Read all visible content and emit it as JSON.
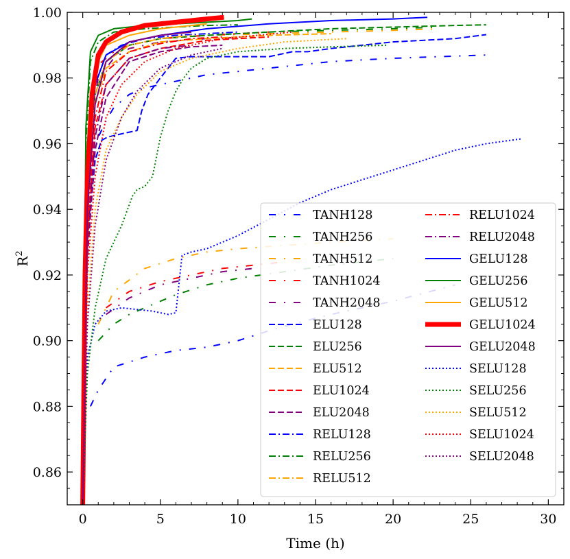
{
  "chart_data": {
    "type": "line",
    "title": "",
    "xlabel": "Time (h)",
    "ylabel": "R²",
    "ylabel_base": "R",
    "ylabel_sup": "2",
    "xlim": [
      -1,
      31
    ],
    "ylim": [
      0.85,
      1.0
    ],
    "xticks": [
      0,
      5,
      10,
      15,
      20,
      25,
      30
    ],
    "yticks": [
      0.86,
      0.88,
      0.9,
      0.92,
      0.94,
      0.96,
      0.98,
      1.0
    ],
    "xtick_labels": [
      "0",
      "5",
      "10",
      "15",
      "20",
      "25",
      "30"
    ],
    "ytick_labels": [
      "0.86",
      "0.88",
      "0.90",
      "0.92",
      "0.94",
      "0.96",
      "0.98",
      "1.00"
    ],
    "legend_position": "lower-right",
    "series": [
      {
        "name": "TANH128",
        "color": "#0000ff",
        "style": "loose-dashdot",
        "width": 2,
        "x": [
          0,
          0.2,
          0.5,
          1,
          1.5,
          2,
          3,
          4,
          6,
          8,
          12,
          16,
          20,
          23,
          26
        ],
        "y": [
          0.85,
          0.93,
          0.952,
          0.962,
          0.967,
          0.971,
          0.975,
          0.977,
          0.979,
          0.981,
          0.983,
          0.985,
          0.986,
          0.9865,
          0.987
        ]
      },
      {
        "name": "TANH256",
        "color": "#008000",
        "style": "loose-dashdot",
        "width": 2,
        "x": [
          0,
          0.2,
          0.5,
          1,
          2,
          3,
          5,
          8,
          12,
          16,
          20,
          23
        ],
        "y": [
          0.85,
          0.94,
          0.975,
          0.984,
          0.988,
          0.99,
          0.992,
          0.993,
          0.994,
          0.9945,
          0.995,
          0.9955
        ]
      },
      {
        "name": "TANH512",
        "color": "#ffa500",
        "style": "loose-dashdot",
        "width": 2,
        "x": [
          0,
          0.2,
          0.5,
          1,
          2,
          3,
          5,
          8,
          12,
          16,
          20,
          23
        ],
        "y": [
          0.85,
          0.945,
          0.975,
          0.984,
          0.988,
          0.99,
          0.992,
          0.993,
          0.9935,
          0.994,
          0.9945,
          0.995
        ]
      },
      {
        "name": "TANH1024",
        "color": "#ff0000",
        "style": "loose-dashdot",
        "width": 2,
        "x": [
          0,
          0.2,
          0.5,
          1,
          2,
          3,
          5,
          8,
          10,
          12
        ],
        "y": [
          0.85,
          0.94,
          0.975,
          0.984,
          0.988,
          0.99,
          0.992,
          0.993,
          0.9935,
          0.994
        ]
      },
      {
        "name": "TANH2048",
        "color": "#800080",
        "style": "loose-dashdot",
        "width": 2,
        "x": [
          0,
          0.2,
          0.5,
          1,
          2,
          3,
          5,
          8,
          11
        ],
        "y": [
          0.85,
          0.93,
          0.968,
          0.98,
          0.986,
          0.989,
          0.991,
          0.992,
          0.9925
        ]
      },
      {
        "name": "ELU128",
        "color": "#0000ff",
        "style": "dashed",
        "width": 2,
        "x": [
          0,
          0.3,
          0.8,
          1.2,
          1.6,
          2.5,
          3.5,
          3.8,
          4.2,
          5,
          6,
          7,
          12,
          13.5,
          14.5,
          16,
          20,
          24,
          26
        ],
        "y": [
          0.85,
          0.93,
          0.955,
          0.961,
          0.962,
          0.963,
          0.964,
          0.97,
          0.975,
          0.98,
          0.986,
          0.9865,
          0.9865,
          0.988,
          0.988,
          0.989,
          0.991,
          0.992,
          0.9932
        ]
      },
      {
        "name": "ELU256",
        "color": "#008000",
        "style": "dashed",
        "width": 2,
        "x": [
          0,
          0.3,
          0.8,
          1.5,
          3,
          5,
          8,
          12,
          16,
          20,
          24,
          26
        ],
        "y": [
          0.85,
          0.94,
          0.975,
          0.985,
          0.99,
          0.992,
          0.993,
          0.994,
          0.995,
          0.9955,
          0.996,
          0.9962
        ]
      },
      {
        "name": "ELU512",
        "color": "#ffa500",
        "style": "dashed",
        "width": 2,
        "x": [
          0,
          0.3,
          0.8,
          1.5,
          3,
          5,
          8,
          12,
          16
        ],
        "y": [
          0.85,
          0.94,
          0.972,
          0.983,
          0.988,
          0.991,
          0.992,
          0.993,
          0.9935
        ]
      },
      {
        "name": "ELU1024",
        "color": "#ff0000",
        "style": "dashed",
        "width": 2,
        "x": [
          0,
          0.3,
          0.8,
          1.5,
          3,
          5,
          8,
          10,
          12
        ],
        "y": [
          0.85,
          0.93,
          0.965,
          0.978,
          0.986,
          0.989,
          0.9915,
          0.992,
          0.9925
        ]
      },
      {
        "name": "ELU2048",
        "color": "#800080",
        "style": "dashed",
        "width": 2,
        "x": [
          0,
          0.3,
          0.8,
          1.5,
          3,
          5,
          7,
          9
        ],
        "y": [
          0.85,
          0.925,
          0.958,
          0.974,
          0.985,
          0.988,
          0.9895,
          0.99
        ]
      },
      {
        "name": "RELU128",
        "color": "#0000ff",
        "style": "dashdot",
        "width": 2,
        "x": [
          0,
          0.3,
          0.8,
          1.5,
          2.5,
          4,
          6,
          8,
          10
        ],
        "y": [
          0.85,
          0.95,
          0.978,
          0.987,
          0.99,
          0.992,
          0.993,
          0.9935,
          0.994
        ]
      },
      {
        "name": "RELU256",
        "color": "#008000",
        "style": "dashdot",
        "width": 2,
        "x": [
          0,
          0.2,
          0.5,
          1,
          2,
          4,
          6,
          8,
          10
        ],
        "y": [
          0.85,
          0.96,
          0.985,
          0.991,
          0.994,
          0.995,
          0.9955,
          0.996,
          0.9962
        ]
      },
      {
        "name": "RELU512",
        "color": "#ffa500",
        "style": "dashdot",
        "width": 2,
        "x": [
          0,
          0.3,
          0.8,
          1.5,
          3,
          5,
          7
        ],
        "y": [
          0.85,
          0.94,
          0.975,
          0.985,
          0.99,
          0.992,
          0.993
        ]
      },
      {
        "name": "RELU1024",
        "color": "#ff0000",
        "style": "dashdot",
        "width": 2,
        "x": [
          0,
          0.3,
          0.8,
          1.5,
          3,
          5,
          7,
          9
        ],
        "y": [
          0.85,
          0.935,
          0.968,
          0.982,
          0.988,
          0.9905,
          0.992,
          0.9925
        ]
      },
      {
        "name": "RELU2048",
        "color": "#800080",
        "style": "dashdot",
        "width": 2,
        "x": [
          0,
          0.3,
          0.8,
          1.5,
          3,
          5,
          7
        ],
        "y": [
          0.85,
          0.93,
          0.962,
          0.978,
          0.986,
          0.989,
          0.99
        ]
      },
      {
        "name": "GELU128",
        "color": "#0000ff",
        "style": "solid",
        "width": 2,
        "x": [
          0,
          0.3,
          0.8,
          1.5,
          3,
          5,
          8,
          12,
          16,
          20,
          22.2
        ],
        "y": [
          0.85,
          0.95,
          0.978,
          0.987,
          0.991,
          0.993,
          0.995,
          0.9965,
          0.9975,
          0.998,
          0.9985
        ]
      },
      {
        "name": "GELU256",
        "color": "#008000",
        "style": "solid",
        "width": 2,
        "x": [
          0,
          0.2,
          0.5,
          1,
          2,
          4,
          6,
          8,
          10,
          10.9
        ],
        "y": [
          0.85,
          0.965,
          0.988,
          0.993,
          0.995,
          0.996,
          0.9965,
          0.997,
          0.9975,
          0.998
        ]
      },
      {
        "name": "GELU512",
        "color": "#ffa500",
        "style": "solid",
        "width": 2,
        "x": [
          0,
          0.3,
          0.8,
          1.5,
          3,
          5,
          7,
          8
        ],
        "y": [
          0.85,
          0.955,
          0.983,
          0.99,
          0.993,
          0.995,
          0.996,
          0.9965
        ]
      },
      {
        "name": "GELU1024",
        "color": "#ff0000",
        "style": "solid",
        "width": 7,
        "x": [
          0,
          0.15,
          0.3,
          0.6,
          1,
          1.5,
          2.5,
          4,
          6,
          8,
          9.1
        ],
        "y": [
          0.85,
          0.92,
          0.95,
          0.975,
          0.987,
          0.991,
          0.994,
          0.996,
          0.997,
          0.998,
          0.9985
        ]
      },
      {
        "name": "GELU2048",
        "color": "#800080",
        "style": "solid",
        "width": 2,
        "x": [
          0,
          0.3,
          0.8,
          1.5,
          3,
          5,
          7
        ],
        "y": [
          0.85,
          0.94,
          0.972,
          0.985,
          0.991,
          0.993,
          0.994
        ]
      },
      {
        "name": "SELU128",
        "color": "#0000ff",
        "style": "dotted",
        "width": 2,
        "x": [
          0,
          0.3,
          0.8,
          1.5,
          2.5,
          3.5,
          4.5,
          5.5,
          6,
          6.4,
          7,
          8,
          9,
          10,
          12,
          14,
          16,
          18,
          20,
          22,
          24,
          26,
          28.3
        ],
        "y": [
          0.85,
          0.895,
          0.905,
          0.909,
          0.91,
          0.9095,
          0.909,
          0.908,
          0.9085,
          0.926,
          0.927,
          0.928,
          0.93,
          0.932,
          0.937,
          0.942,
          0.946,
          0.949,
          0.952,
          0.955,
          0.958,
          0.96,
          0.9615
        ]
      },
      {
        "name": "SELU256",
        "color": "#008000",
        "style": "dotted",
        "width": 2,
        "x": [
          0,
          0.3,
          0.8,
          1.5,
          2.5,
          3.2,
          3.5,
          4,
          4.5,
          5,
          5.5,
          6,
          6.5,
          7,
          8,
          10,
          13,
          16,
          19.6
        ],
        "y": [
          0.85,
          0.89,
          0.91,
          0.925,
          0.935,
          0.944,
          0.946,
          0.947,
          0.95,
          0.962,
          0.97,
          0.976,
          0.98,
          0.983,
          0.986,
          0.988,
          0.989,
          0.9895,
          0.99
        ]
      },
      {
        "name": "SELU512",
        "color": "#ffa500",
        "style": "dotted",
        "width": 2,
        "x": [
          0,
          0.3,
          0.8,
          1.5,
          2.5,
          3.5,
          5,
          7,
          10,
          13,
          17
        ],
        "y": [
          0.85,
          0.91,
          0.94,
          0.958,
          0.968,
          0.975,
          0.982,
          0.986,
          0.989,
          0.991,
          0.992
        ]
      },
      {
        "name": "SELU1024",
        "color": "#ff0000",
        "style": "dotted",
        "width": 2,
        "x": [
          0,
          0.3,
          0.8,
          1.5,
          2.5,
          4,
          6,
          9,
          13.5
        ],
        "y": [
          0.85,
          0.92,
          0.95,
          0.968,
          0.978,
          0.985,
          0.989,
          0.992,
          0.994
        ]
      },
      {
        "name": "SELU2048",
        "color": "#800080",
        "style": "dotted",
        "width": 2,
        "x": [
          0,
          0.3,
          0.8,
          1.5,
          2.5,
          3.5,
          5,
          7,
          9
        ],
        "y": [
          0.85,
          0.905,
          0.935,
          0.955,
          0.968,
          0.976,
          0.983,
          0.987,
          0.989
        ]
      }
    ],
    "auxiliary_lines": [
      {
        "color": "#0000ff",
        "style": "loose-dashdot",
        "x": [
          0.5,
          1,
          2,
          4,
          6,
          8,
          10,
          12,
          13.5,
          16,
          20,
          24
        ],
        "y": [
          0.88,
          0.885,
          0.892,
          0.895,
          0.897,
          0.898,
          0.9,
          0.903,
          0.905,
          0.908,
          0.912,
          0.917
        ]
      },
      {
        "color": "#ffa500",
        "style": "loose-dashdot",
        "x": [
          1,
          2,
          4,
          6,
          8,
          10,
          13,
          16,
          20
        ],
        "y": [
          0.905,
          0.915,
          0.922,
          0.925,
          0.927,
          0.928,
          0.929,
          0.93,
          0.931
        ]
      },
      {
        "color": "#ff0000",
        "style": "loose-dashdot",
        "x": [
          1.5,
          3,
          5,
          7,
          9,
          11,
          13
        ],
        "y": [
          0.91,
          0.915,
          0.918,
          0.92,
          0.922,
          0.923,
          0.924
        ]
      },
      {
        "color": "#800080",
        "style": "loose-dashdot",
        "x": [
          1.5,
          3,
          5,
          7,
          9,
          11
        ],
        "y": [
          0.908,
          0.913,
          0.917,
          0.919,
          0.921,
          0.922
        ]
      },
      {
        "color": "#008000",
        "style": "loose-dashdot",
        "x": [
          1,
          2,
          3,
          4.5,
          6,
          8,
          10,
          13,
          16,
          20
        ],
        "y": [
          0.9,
          0.905,
          0.908,
          0.911,
          0.914,
          0.917,
          0.919,
          0.921,
          0.923,
          0.925
        ]
      }
    ]
  }
}
